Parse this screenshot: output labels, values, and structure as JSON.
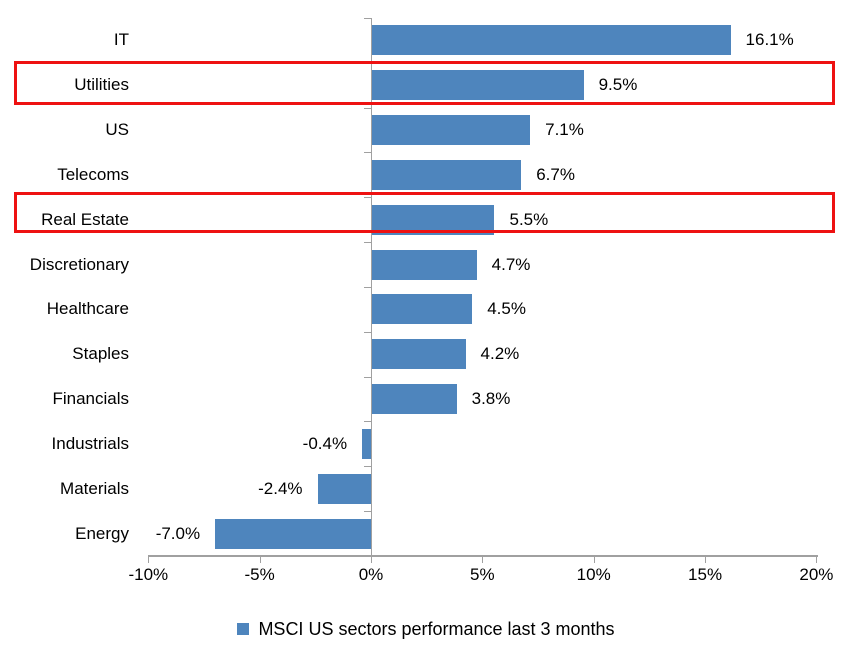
{
  "chart_data": {
    "type": "bar",
    "orientation": "horizontal",
    "categories": [
      "IT",
      "Utilities",
      "US",
      "Telecoms",
      "Real Estate",
      "Discretionary",
      "Healthcare",
      "Staples",
      "Financials",
      "Industrials",
      "Materials",
      "Energy"
    ],
    "values": [
      16.1,
      9.5,
      7.1,
      6.7,
      5.5,
      4.7,
      4.5,
      4.2,
      3.8,
      -0.4,
      -2.4,
      -7.0
    ],
    "data_labels": [
      "16.1%",
      "9.5%",
      "7.1%",
      "6.7%",
      "5.5%",
      "4.7%",
      "4.5%",
      "4.2%",
      "3.8%",
      "-0.4%",
      "-2.4%",
      "-7.0%"
    ],
    "x_ticks": [
      {
        "value": -10,
        "label": "-10%"
      },
      {
        "value": -5,
        "label": "-5%"
      },
      {
        "value": 0,
        "label": "0%"
      },
      {
        "value": 5,
        "label": "5%"
      },
      {
        "value": 10,
        "label": "10%"
      },
      {
        "value": 15,
        "label": "15%"
      },
      {
        "value": 20,
        "label": "20%"
      }
    ],
    "xlim": [
      -10,
      20
    ],
    "grid": false,
    "legend": "MSCI US sectors performance last 3 months",
    "legend_position": "bottom-center",
    "highlighted_categories": [
      "Utilities",
      "Real Estate"
    ],
    "highlight_indices": [
      1,
      4
    ],
    "bar_color": "#4E85BD",
    "highlight_box_color": "#EE1111",
    "axis_color": "#A0A0A0",
    "text_color": "#000000"
  }
}
